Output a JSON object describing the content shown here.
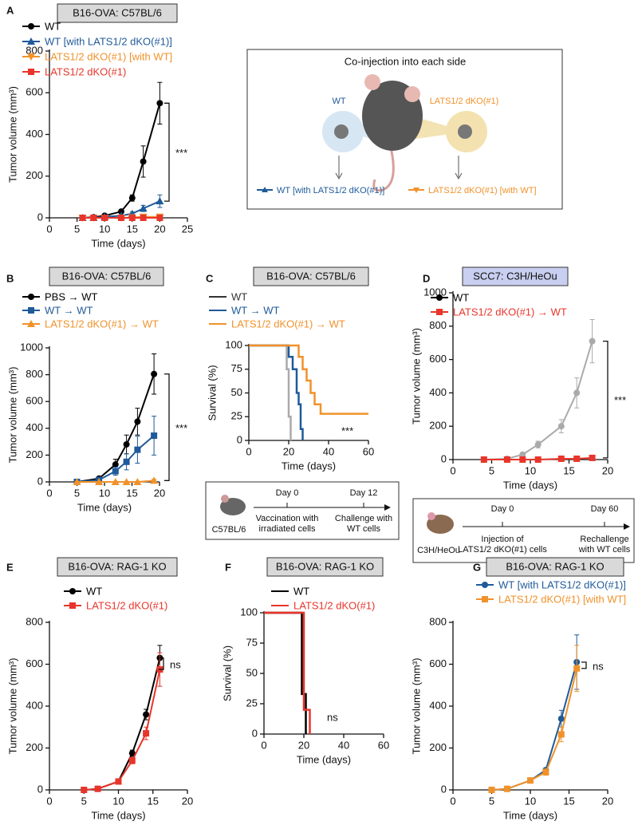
{
  "chart_data": [
    {
      "type": "line",
      "panel": "A",
      "title": "B16-OVA: C57BL/6",
      "title_color": "#d9d9d9",
      "xlabel": "Time (days)",
      "ylabel": "Tumor volume (mm³)",
      "x": [
        6,
        8,
        10,
        13,
        15,
        17,
        20
      ],
      "xlim": [
        0,
        25
      ],
      "xticks": [
        0,
        5,
        10,
        15,
        20,
        25
      ],
      "ylim": [
        0,
        800
      ],
      "yticks": [
        0,
        200,
        400,
        600,
        800
      ],
      "annotation": "***",
      "series": [
        {
          "name": "WT",
          "color": "#000000",
          "marker": "circle",
          "values": [
            0,
            3,
            10,
            30,
            95,
            270,
            550
          ],
          "errors": [
            0,
            2,
            3,
            5,
            15,
            75,
            100
          ]
        },
        {
          "name": "WT [with LATS1/2 dKO(#1)]",
          "color": "#1f5a99",
          "marker": "triangle",
          "values": [
            0,
            0,
            5,
            10,
            20,
            45,
            80
          ],
          "errors": [
            0,
            0,
            2,
            3,
            8,
            15,
            30
          ]
        },
        {
          "name": "LATS1/2 dKO(#1) [with WT]",
          "color": "#f0922b",
          "marker": "triangle-down",
          "values": [
            0,
            0,
            0,
            0,
            2,
            5,
            5
          ],
          "errors": [
            0,
            0,
            0,
            0,
            1,
            2,
            3
          ]
        },
        {
          "name": "LATS1/2 dKO(#1)",
          "color": "#e8352b",
          "marker": "square",
          "values": [
            0,
            0,
            0,
            0,
            0,
            0,
            0
          ],
          "errors": [
            0,
            0,
            0,
            0,
            0,
            0,
            0
          ]
        }
      ]
    },
    {
      "type": "line",
      "panel": "B",
      "title": "B16-OVA: C57BL/6",
      "title_color": "#d9d9d9",
      "xlabel": "Time (days)",
      "ylabel": "Tumor volume (mm³)",
      "x": [
        5,
        9,
        12,
        14,
        16,
        19
      ],
      "xlim": [
        0,
        20
      ],
      "xticks": [
        0,
        5,
        10,
        15,
        20
      ],
      "ylim": [
        0,
        1000
      ],
      "yticks": [
        0,
        200,
        400,
        600,
        800,
        1000
      ],
      "annotation": "***",
      "series": [
        {
          "name": "PBS → WT",
          "color": "#000000",
          "marker": "circle",
          "values": [
            0,
            25,
            130,
            280,
            450,
            805
          ],
          "errors": [
            0,
            10,
            40,
            70,
            100,
            150
          ]
        },
        {
          "name": "WT → WT",
          "color": "#1f5a99",
          "marker": "square",
          "values": [
            0,
            15,
            80,
            150,
            240,
            345
          ],
          "errors": [
            0,
            8,
            30,
            60,
            100,
            145
          ]
        },
        {
          "name": "LATS1/2 dKO(#1) → WT",
          "color": "#f0922b",
          "marker": "triangle",
          "values": [
            0,
            0,
            0,
            0,
            0,
            10
          ],
          "errors": [
            0,
            0,
            0,
            0,
            0,
            10
          ]
        }
      ]
    },
    {
      "type": "step",
      "panel": "C",
      "title": "B16-OVA: C57BL/6",
      "title_color": "#d9d9d9",
      "xlabel": "Time (days)",
      "ylabel": "Survival (%)",
      "xlim": [
        0,
        60
      ],
      "xticks": [
        0,
        20,
        40,
        60
      ],
      "ylim": [
        0,
        100
      ],
      "yticks": [
        0,
        25,
        50,
        75,
        100
      ],
      "annotation": "***",
      "series": [
        {
          "name": "WT",
          "color": "#333333",
          "line_color": "#aaaaaa",
          "marker": "line",
          "x": [
            0,
            19,
            19,
            20,
            20,
            21,
            21
          ],
          "values": [
            100,
            100,
            75,
            75,
            25,
            25,
            0
          ]
        },
        {
          "name": "WT → WT",
          "color": "#1f5a99",
          "marker": "line",
          "x": [
            0,
            20,
            20,
            22,
            22,
            24,
            24,
            25,
            25,
            26,
            26,
            27,
            27
          ],
          "values": [
            100,
            100,
            88,
            88,
            75,
            75,
            50,
            50,
            38,
            38,
            12,
            12,
            0
          ]
        },
        {
          "name": "LATS1/2 dKO(#1) → WT",
          "color": "#f0922b",
          "marker": "line",
          "x": [
            0,
            25,
            25,
            27,
            27,
            29,
            29,
            31,
            31,
            33,
            33,
            36,
            36,
            60
          ],
          "values": [
            100,
            100,
            88,
            88,
            75,
            75,
            63,
            63,
            50,
            50,
            38,
            38,
            28,
            28
          ]
        }
      ]
    },
    {
      "type": "line",
      "panel": "D",
      "title": "SCC7: C3H/HeOu",
      "title_color": "#c9cff0",
      "xlabel": "Time (days)",
      "ylabel": "Tumor volume (mm³)",
      "x": [
        4,
        7,
        9,
        11,
        14,
        16,
        18
      ],
      "xlim": [
        0,
        20
      ],
      "xticks": [
        0,
        5,
        10,
        15,
        20
      ],
      "ylim": [
        0,
        1000
      ],
      "yticks": [
        0,
        200,
        400,
        600,
        800,
        1000
      ],
      "annotation": "***",
      "series": [
        {
          "name": "WT",
          "color": "#000000",
          "line_color": "#aaaaaa",
          "marker": "circle",
          "values": [
            0,
            5,
            30,
            90,
            200,
            400,
            710
          ],
          "errors": [
            0,
            3,
            10,
            20,
            40,
            90,
            130
          ]
        },
        {
          "name": "LATS1/2 dKO(#1) → WT",
          "color": "#e8352b",
          "marker": "square",
          "values": [
            0,
            0,
            0,
            0,
            5,
            5,
            10
          ],
          "errors": [
            0,
            0,
            0,
            0,
            2,
            3,
            5
          ]
        }
      ]
    },
    {
      "type": "line",
      "panel": "E",
      "title": "B16-OVA: RAG-1 KO",
      "title_color": "#d9d9d9",
      "xlabel": "Time (days)",
      "ylabel": "Tumor volume (mm³)",
      "x": [
        5,
        7,
        10,
        12,
        14,
        16
      ],
      "xlim": [
        0,
        20
      ],
      "xticks": [
        0,
        5,
        10,
        15,
        20
      ],
      "ylim": [
        0,
        800
      ],
      "yticks": [
        0,
        200,
        400,
        600,
        800
      ],
      "annotation": "ns",
      "series": [
        {
          "name": "WT",
          "color": "#000000",
          "marker": "circle",
          "values": [
            0,
            5,
            40,
            175,
            360,
            630
          ],
          "errors": [
            0,
            2,
            5,
            15,
            25,
            60
          ]
        },
        {
          "name": "LATS1/2 dKO(#1)",
          "color": "#e8352b",
          "marker": "square",
          "values": [
            0,
            5,
            40,
            140,
            270,
            575
          ],
          "errors": [
            0,
            2,
            5,
            15,
            30,
            80
          ]
        }
      ]
    },
    {
      "type": "step",
      "panel": "F",
      "title": "B16-OVA: RAG-1 KO",
      "title_color": "#d9d9d9",
      "xlabel": "Time (days)",
      "ylabel": "Survival (%)",
      "xlim": [
        0,
        60
      ],
      "xticks": [
        0,
        20,
        40,
        60
      ],
      "ylim": [
        0,
        100
      ],
      "yticks": [
        0,
        25,
        50,
        75,
        100
      ],
      "annotation": "ns",
      "series": [
        {
          "name": "WT",
          "color": "#000000",
          "marker": "line",
          "x": [
            0,
            19,
            19,
            21,
            21
          ],
          "values": [
            100,
            100,
            33,
            33,
            0
          ]
        },
        {
          "name": "LATS1/2 dKO(#1)",
          "color": "#e8352b",
          "marker": "line",
          "x": [
            0,
            20,
            20,
            23,
            23
          ],
          "values": [
            100,
            100,
            20,
            20,
            0
          ]
        }
      ]
    },
    {
      "type": "line",
      "panel": "G",
      "title": "B16-OVA: RAG-1 KO",
      "title_color": "#d9d9d9",
      "xlabel": "Time (days)",
      "ylabel": "Tumor volume (mm³)",
      "x": [
        5,
        7,
        10,
        12,
        14,
        16
      ],
      "xlim": [
        0,
        20
      ],
      "xticks": [
        0,
        5,
        10,
        15,
        20
      ],
      "ylim": [
        0,
        800
      ],
      "yticks": [
        0,
        200,
        400,
        600,
        800
      ],
      "annotation": "ns",
      "series": [
        {
          "name": "WT [with LATS1/2 dKO(#1)]",
          "color": "#1f5a99",
          "marker": "circle",
          "values": [
            0,
            5,
            45,
            95,
            340,
            610
          ],
          "errors": [
            0,
            2,
            5,
            10,
            40,
            130
          ]
        },
        {
          "name": "LATS1/2 dKO(#1) [with WT]",
          "color": "#f0922b",
          "marker": "square",
          "values": [
            0,
            5,
            45,
            85,
            265,
            580
          ],
          "errors": [
            0,
            2,
            5,
            15,
            35,
            110
          ]
        }
      ]
    }
  ],
  "diagrams": {
    "coinjection": {
      "title": "Co-injection into each side",
      "left": "WT",
      "right": "LATS1/2 dKO(#1)",
      "legend": [
        "WT [with LATS1/2 dKO(#1)]",
        "LATS1/2 dKO(#1) [with WT]"
      ]
    },
    "timeline_c": {
      "host": "C57BL/6",
      "start": "Day 0",
      "end": "Day 12",
      "start_text": [
        "Vaccination with",
        "irradiated cells"
      ],
      "end_text": [
        "Challenge with",
        "WT cells"
      ]
    },
    "timeline_d": {
      "host": "C3H/HeOu",
      "start": "Day 0",
      "end": "Day 60",
      "start_text": [
        "Injection of",
        "LATS1/2 dKO(#1) cells"
      ],
      "end_text": [
        "Rechallenge",
        "with WT cells"
      ]
    }
  }
}
